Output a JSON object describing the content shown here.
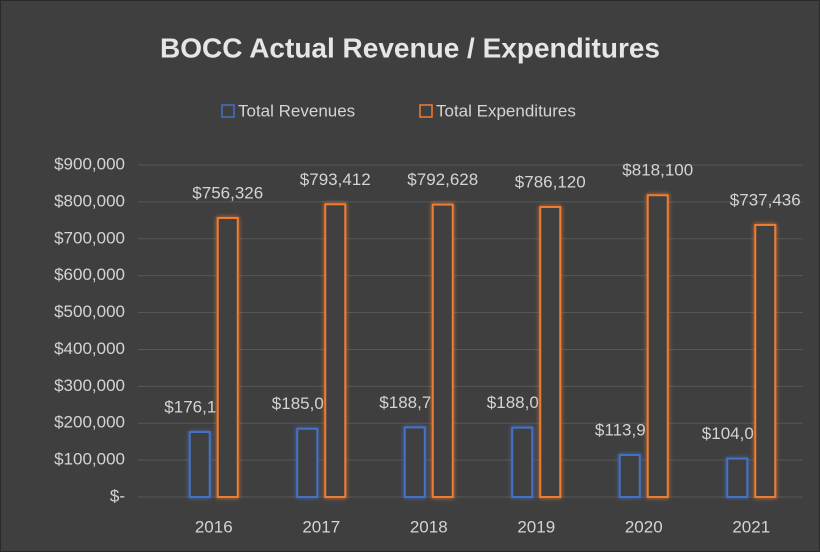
{
  "chart_data": {
    "type": "bar",
    "title": "BOCC Actual Revenue / Expenditures",
    "categories": [
      "2016",
      "2017",
      "2018",
      "2019",
      "2020",
      "2021"
    ],
    "series": [
      {
        "name": "Total Revenues",
        "color": "#4472c4",
        "values": [
          176176,
          185023,
          188727,
          188012,
          113972,
          104024
        ],
        "value_labels": [
          "$176,176",
          "$185,023",
          "$188,727",
          "$188,012",
          "$113,972",
          "$104,024"
        ]
      },
      {
        "name": "Total Expenditures",
        "color": "#ed7d31",
        "values": [
          756326,
          793412,
          792628,
          786120,
          818100,
          737436
        ],
        "value_labels": [
          "$756,326",
          "$793,412",
          "$792,628",
          "$786,120",
          "$818,100",
          "$737,436"
        ]
      }
    ],
    "ylim": [
      0,
      900000
    ],
    "yticks": [
      {
        "value": 0,
        "label": "$-"
      },
      {
        "value": 100000,
        "label": "$100,000"
      },
      {
        "value": 200000,
        "label": "$200,000"
      },
      {
        "value": 300000,
        "label": "$300,000"
      },
      {
        "value": 400000,
        "label": "$400,000"
      },
      {
        "value": 500000,
        "label": "$500,000"
      },
      {
        "value": 600000,
        "label": "$600,000"
      },
      {
        "value": 700000,
        "label": "$700,000"
      },
      {
        "value": 800000,
        "label": "$800,000"
      },
      {
        "value": 900000,
        "label": "$900,000"
      }
    ],
    "grid": true,
    "legend": "top"
  }
}
